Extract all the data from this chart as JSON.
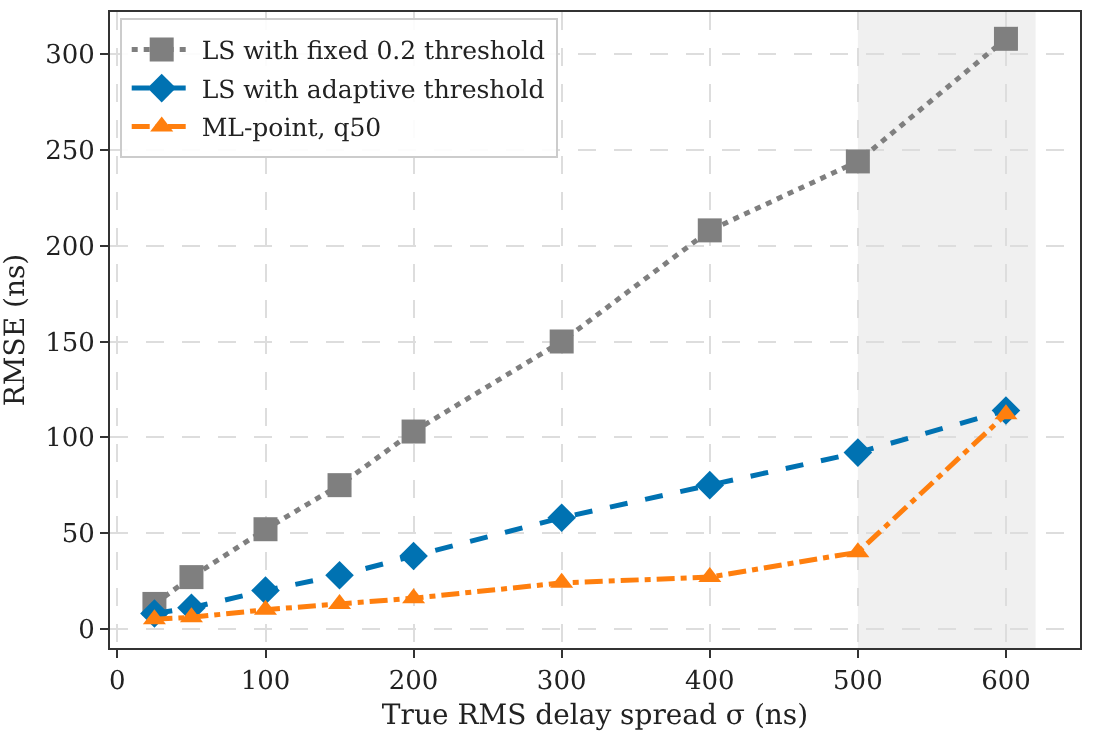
{
  "chart_data": {
    "type": "line",
    "xlabel": "True RMS delay spread σ (ns)",
    "ylabel": "RMSE (ns)",
    "x": [
      25,
      50,
      100,
      150,
      200,
      300,
      400,
      500,
      600
    ],
    "series": [
      {
        "name": "LS with fixed 0.2 threshold",
        "color": "#7f7f7f",
        "marker": "square",
        "line_style": "dotted",
        "values": [
          13,
          27,
          52,
          75,
          103,
          150,
          208,
          244,
          308
        ]
      },
      {
        "name": "LS with adaptive threshold",
        "color": "#0072b2",
        "marker": "diamond",
        "line_style": "dashed",
        "values": [
          8,
          11,
          20,
          28,
          38,
          58,
          75,
          92,
          114
        ]
      },
      {
        "name": "ML-point, q50",
        "color": "#ff7f0e",
        "marker": "triangle",
        "line_style": "dashdot",
        "values": [
          5,
          6,
          10,
          13,
          16,
          24,
          27,
          40,
          112
        ]
      }
    ],
    "xlim": [
      -5,
      650
    ],
    "xticks": [
      0,
      100,
      200,
      300,
      400,
      500,
      600
    ],
    "ylim": [
      -10,
      322
    ],
    "yticks": [
      0,
      50,
      100,
      150,
      200,
      250,
      300
    ],
    "bands": [
      {
        "axis": "x",
        "from": 500,
        "to": 620,
        "color": "#f0f0f0"
      }
    ],
    "grid": true,
    "legend": "top left"
  }
}
